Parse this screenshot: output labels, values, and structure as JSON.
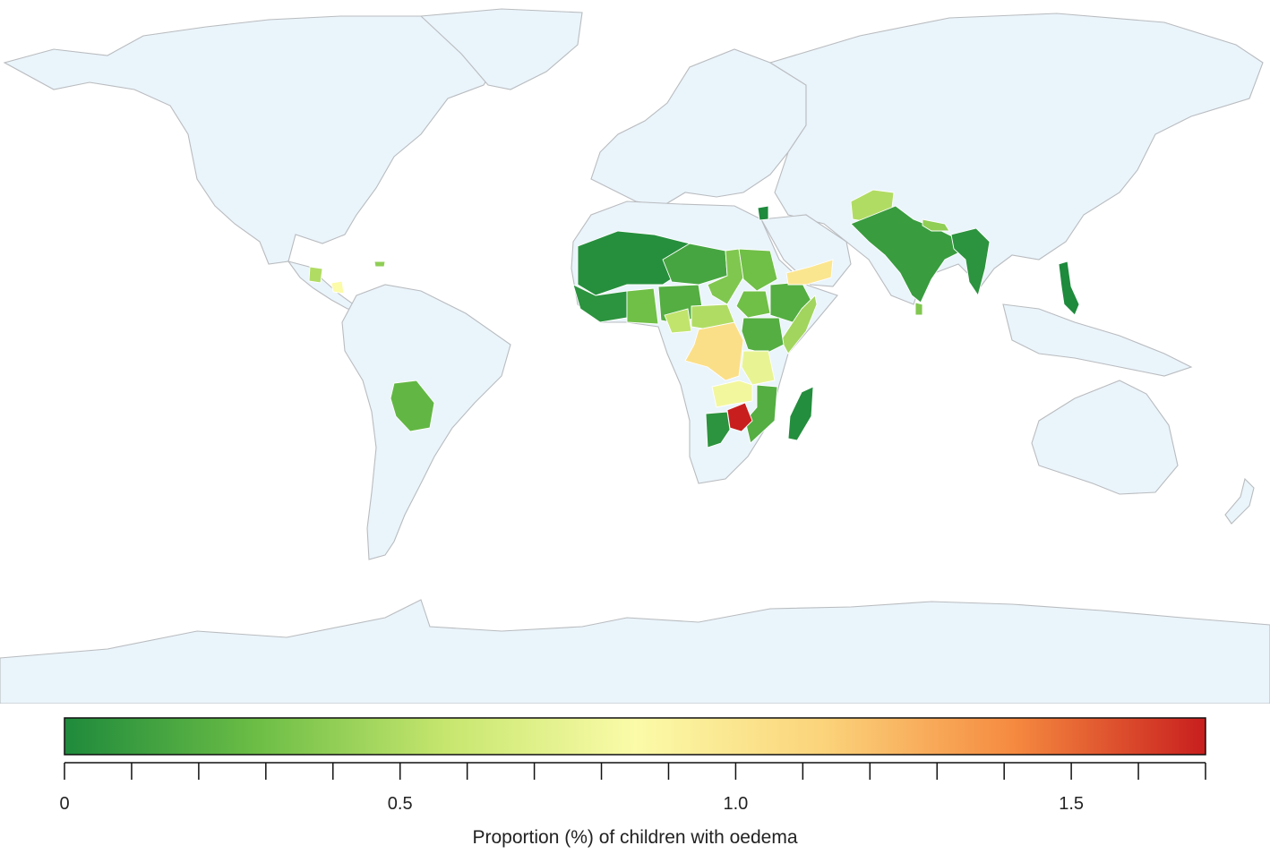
{
  "legend": {
    "title": "Proportion (%) of children with oedema",
    "min": 0,
    "max": 1.7,
    "major_ticks": [
      {
        "value": 0,
        "label": "0"
      },
      {
        "value": 0.5,
        "label": "0.5"
      },
      {
        "value": 1.0,
        "label": "1.0"
      },
      {
        "value": 1.5,
        "label": "1.5"
      }
    ],
    "minor_step": 0.1,
    "color_stops": [
      "#1e8a3c",
      "#6bbd45",
      "#c6e66e",
      "#fbfba8",
      "#fbd37a",
      "#f5893f",
      "#c81e1e"
    ]
  },
  "colors": {
    "no_data_fill": "#eaf4fb",
    "border": "#b9bcbf",
    "background": "#ffffff"
  },
  "regions": [
    {
      "name": "mali-burkina-west",
      "value": 0.03
    },
    {
      "name": "guinea-coast",
      "value": 0.05
    },
    {
      "name": "ghana-ivory-coast",
      "value": 0.3
    },
    {
      "name": "niger",
      "value": 0.15
    },
    {
      "name": "nigeria",
      "value": 0.2
    },
    {
      "name": "chad",
      "value": 0.35
    },
    {
      "name": "sudan",
      "value": 0.3
    },
    {
      "name": "south-sudan",
      "value": 0.3
    },
    {
      "name": "ethiopia",
      "value": 0.2
    },
    {
      "name": "somalia",
      "value": 0.45
    },
    {
      "name": "yemen",
      "value": 1.0
    },
    {
      "name": "jordan",
      "value": 0.0
    },
    {
      "name": "cameroon",
      "value": 0.55
    },
    {
      "name": "car",
      "value": 0.5
    },
    {
      "name": "drc",
      "value": 1.05
    },
    {
      "name": "kenya-uganda",
      "value": 0.2
    },
    {
      "name": "tanzania",
      "value": 0.75
    },
    {
      "name": "zambia",
      "value": 0.8
    },
    {
      "name": "malawi-mozambique",
      "value": 0.2
    },
    {
      "name": "zimbabwe",
      "value": 1.7
    },
    {
      "name": "namibia-botswana",
      "value": 0.05
    },
    {
      "name": "madagascar",
      "value": 0.02
    },
    {
      "name": "afghanistan",
      "value": 0.5
    },
    {
      "name": "india",
      "value": 0.1
    },
    {
      "name": "nepal",
      "value": 0.4
    },
    {
      "name": "bangladesh-myanmar",
      "value": 0.05
    },
    {
      "name": "sri-lanka",
      "value": 0.35
    },
    {
      "name": "philippines",
      "value": 0.0
    },
    {
      "name": "bolivia",
      "value": 0.25
    },
    {
      "name": "guatemala",
      "value": 0.5
    },
    {
      "name": "nicaragua",
      "value": 0.85
    },
    {
      "name": "haiti",
      "value": 0.4
    }
  ]
}
